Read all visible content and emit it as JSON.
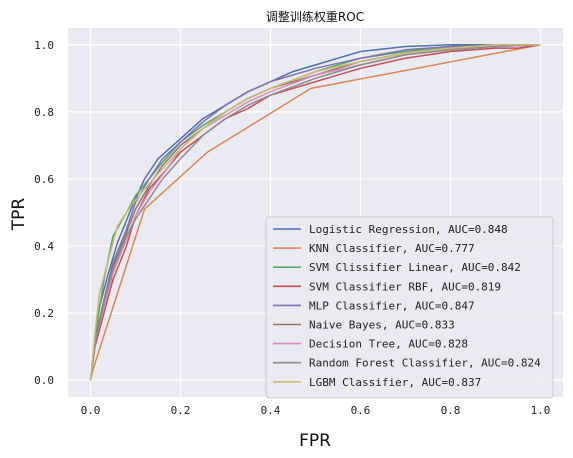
{
  "chart_data": {
    "type": "line",
    "title": "调整训练权重ROC",
    "xlabel": "FPR",
    "ylabel": "TPR",
    "xlim": [
      -0.05,
      1.05
    ],
    "ylim": [
      -0.05,
      1.05
    ],
    "xticks": [
      "0.0",
      "0.2",
      "0.4",
      "0.6",
      "0.8",
      "1.0"
    ],
    "yticks": [
      "0.0",
      "0.2",
      "0.4",
      "0.6",
      "0.8",
      "1.0"
    ],
    "grid": true,
    "background": "#eaeaf2",
    "legend_position": "lower-right",
    "series": [
      {
        "name": "Logistic Regression, AUC=0.848",
        "color": "#4c72b0",
        "x": [
          0,
          0.01,
          0.02,
          0.04,
          0.06,
          0.09,
          0.12,
          0.15,
          0.2,
          0.25,
          0.3,
          0.35,
          0.4,
          0.45,
          0.5,
          0.55,
          0.6,
          0.7,
          0.8,
          0.9,
          1.0
        ],
        "y": [
          0,
          0.12,
          0.22,
          0.32,
          0.41,
          0.51,
          0.6,
          0.66,
          0.72,
          0.78,
          0.82,
          0.86,
          0.89,
          0.92,
          0.94,
          0.96,
          0.98,
          0.995,
          1.0,
          1.0,
          1.0
        ]
      },
      {
        "name": "KNN Classifier, AUC=0.777",
        "color": "#dd8452",
        "x": [
          0,
          0.005,
          0.12,
          0.26,
          0.49,
          1.0
        ],
        "y": [
          0,
          0.03,
          0.51,
          0.68,
          0.87,
          1.0
        ]
      },
      {
        "name": "SVM Clissifier Linear, AUC=0.842",
        "color": "#55a868",
        "x": [
          0,
          0.01,
          0.03,
          0.05,
          0.08,
          0.1,
          0.13,
          0.16,
          0.2,
          0.25,
          0.3,
          0.35,
          0.4,
          0.5,
          0.6,
          0.7,
          0.8,
          0.9,
          1.0
        ],
        "y": [
          0,
          0.13,
          0.3,
          0.43,
          0.5,
          0.55,
          0.6,
          0.65,
          0.71,
          0.76,
          0.8,
          0.84,
          0.87,
          0.92,
          0.96,
          0.98,
          0.995,
          1.0,
          1.0
        ]
      },
      {
        "name": "SVM Classifier RBF, AUC=0.819",
        "color": "#c44e52",
        "x": [
          0,
          0.01,
          0.03,
          0.05,
          0.08,
          0.1,
          0.13,
          0.17,
          0.2,
          0.25,
          0.3,
          0.35,
          0.4,
          0.5,
          0.6,
          0.7,
          0.8,
          0.9,
          0.95,
          1.0
        ],
        "y": [
          0,
          0.1,
          0.2,
          0.3,
          0.4,
          0.49,
          0.57,
          0.63,
          0.68,
          0.73,
          0.78,
          0.81,
          0.85,
          0.89,
          0.93,
          0.96,
          0.98,
          0.99,
          0.99,
          1.0
        ]
      },
      {
        "name": "MLP Classifier, AUC=0.847",
        "color": "#8172b3",
        "x": [
          0,
          0.01,
          0.03,
          0.05,
          0.08,
          0.1,
          0.13,
          0.16,
          0.2,
          0.25,
          0.3,
          0.35,
          0.4,
          0.45,
          0.5,
          0.6,
          0.7,
          0.8,
          0.9,
          1.0
        ],
        "y": [
          0,
          0.12,
          0.24,
          0.35,
          0.45,
          0.53,
          0.6,
          0.66,
          0.71,
          0.77,
          0.82,
          0.86,
          0.89,
          0.91,
          0.93,
          0.96,
          0.985,
          0.995,
          1.0,
          1.0
        ]
      },
      {
        "name": "Naive Bayes, AUC=0.833",
        "color": "#937860",
        "x": [
          0,
          0.01,
          0.03,
          0.05,
          0.08,
          0.1,
          0.13,
          0.16,
          0.2,
          0.25,
          0.3,
          0.35,
          0.4,
          0.5,
          0.6,
          0.7,
          0.8,
          0.9,
          1.0
        ],
        "y": [
          0,
          0.12,
          0.23,
          0.34,
          0.44,
          0.51,
          0.58,
          0.64,
          0.7,
          0.75,
          0.8,
          0.84,
          0.87,
          0.91,
          0.95,
          0.975,
          0.99,
          1.0,
          1.0
        ]
      },
      {
        "name": "Decision Tree, AUC=0.828",
        "color": "#da8bc3",
        "x": [
          0,
          0.01,
          0.03,
          0.05,
          0.08,
          0.1,
          0.13,
          0.17,
          0.2,
          0.25,
          0.3,
          0.35,
          0.4,
          0.5,
          0.6,
          0.7,
          0.8,
          0.9,
          1.0
        ],
        "y": [
          0,
          0.11,
          0.22,
          0.32,
          0.42,
          0.49,
          0.56,
          0.63,
          0.69,
          0.75,
          0.79,
          0.83,
          0.86,
          0.91,
          0.94,
          0.97,
          0.985,
          0.995,
          1.0
        ]
      },
      {
        "name": "Random Forest Classifier, AUC=0.824",
        "color": "#8c8c8c",
        "x": [
          0,
          0.01,
          0.03,
          0.05,
          0.08,
          0.1,
          0.13,
          0.16,
          0.2,
          0.25,
          0.3,
          0.35,
          0.4,
          0.5,
          0.6,
          0.7,
          0.8,
          0.9,
          1.0
        ],
        "y": [
          0,
          0.11,
          0.23,
          0.33,
          0.43,
          0.48,
          0.54,
          0.6,
          0.66,
          0.73,
          0.78,
          0.82,
          0.85,
          0.9,
          0.94,
          0.97,
          0.985,
          0.995,
          1.0
        ]
      },
      {
        "name": "LGBM Classifier, AUC=0.837",
        "color": "#ccb974",
        "x": [
          0,
          0.01,
          0.02,
          0.04,
          0.06,
          0.09,
          0.12,
          0.16,
          0.2,
          0.25,
          0.3,
          0.35,
          0.4,
          0.5,
          0.6,
          0.7,
          0.8,
          0.9,
          1.0
        ],
        "y": [
          0,
          0.14,
          0.26,
          0.36,
          0.46,
          0.52,
          0.57,
          0.63,
          0.69,
          0.75,
          0.8,
          0.84,
          0.87,
          0.92,
          0.95,
          0.975,
          0.99,
          1.0,
          1.0
        ]
      }
    ]
  }
}
